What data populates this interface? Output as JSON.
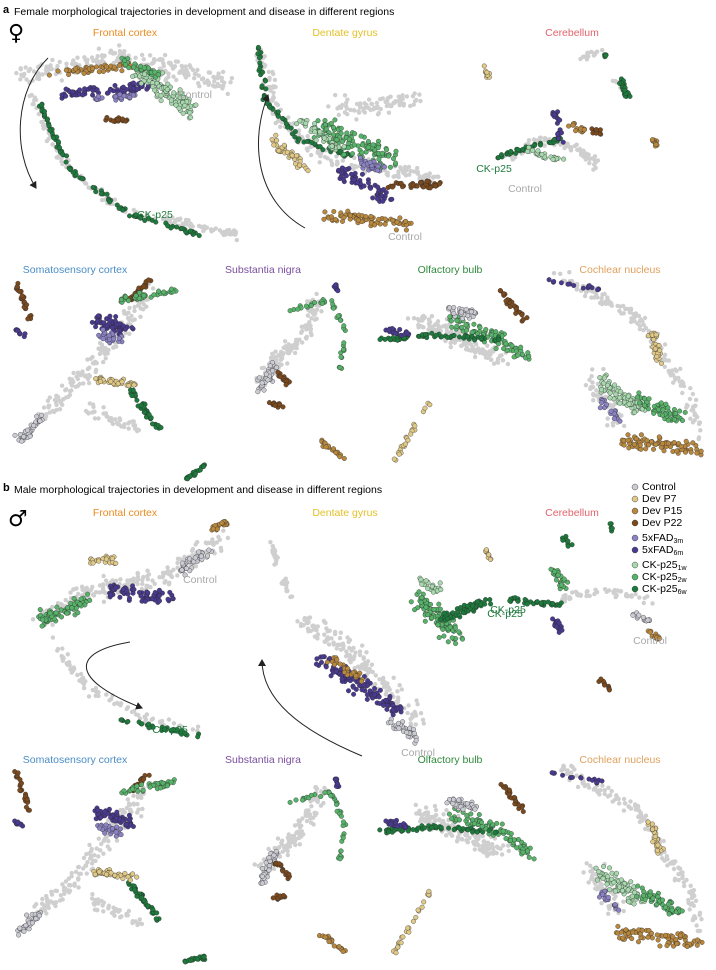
{
  "panels": [
    {
      "label": "a",
      "title": "Female morphological trajectories in development and disease in different regions",
      "sex_symbol": "♀",
      "regions": [
        {
          "name": "Frontal cortex",
          "color": "#e88b1e"
        },
        {
          "name": "Dentate gyrus",
          "color": "#e3c02a"
        },
        {
          "name": "Cerebellum",
          "color": "#e2636b"
        },
        {
          "name": "Somatosensory cortex",
          "color": "#4a8dc6"
        },
        {
          "name": "Substantia nigra",
          "color": "#7a4f9f"
        },
        {
          "name": "Olfactory bulb",
          "color": "#2f8a3c"
        },
        {
          "name": "Cochlear nucleus",
          "color": "#e0a05e"
        }
      ],
      "annotations": [
        {
          "text": "Control",
          "color": "#a9a9a9"
        },
        {
          "text": "CK-p25",
          "color": "#1e7a3c"
        },
        {
          "text": "Control",
          "color": "#a9a9a9"
        },
        {
          "text": "CK-p25",
          "color": "#1e7a3c"
        },
        {
          "text": "Control",
          "color": "#a9a9a9"
        }
      ]
    },
    {
      "label": "b",
      "title": "Male morphological trajectories in development and disease in different regions",
      "sex_symbol": "♂",
      "regions": [
        {
          "name": "Frontal cortex",
          "color": "#e88b1e"
        },
        {
          "name": "Dentate gyrus",
          "color": "#e3c02a"
        },
        {
          "name": "Cerebellum",
          "color": "#e2636b"
        },
        {
          "name": "Somatosensory cortex",
          "color": "#4a8dc6"
        },
        {
          "name": "Substantia nigra",
          "color": "#7a4f9f"
        },
        {
          "name": "Olfactory bulb",
          "color": "#2f8a3c"
        },
        {
          "name": "Cochlear nucleus",
          "color": "#e0a05e"
        }
      ],
      "annotations": [
        {
          "text": "Control",
          "color": "#a9a9a9"
        },
        {
          "text": "CK-p25",
          "color": "#1e7a3c"
        },
        {
          "text": "CK-p25",
          "color": "#1e7a3c"
        },
        {
          "text": "Control",
          "color": "#a9a9a9"
        },
        {
          "text": "CK-p25",
          "color": "#1e7a3c"
        },
        {
          "text": "Control",
          "color": "#a9a9a9"
        }
      ]
    }
  ],
  "legend": {
    "items": [
      {
        "text": "Control",
        "color": "#cbcbd4"
      },
      {
        "text": "Dev P7",
        "color": "#e0c987"
      },
      {
        "text": "Dev P15",
        "color": "#b8883e"
      },
      {
        "text": "Dev P22",
        "color": "#7a4a1e"
      },
      {
        "text": "5xFAD",
        "sub": "3m",
        "color": "#8b82c4"
      },
      {
        "text": "5xFAD",
        "sub": "6m",
        "color": "#4a3a8f"
      },
      {
        "text": "CK-p25",
        "sub": "1w",
        "color": "#a8d9ae"
      },
      {
        "text": "CK-p25",
        "sub": "2w",
        "color": "#58b36a"
      },
      {
        "text": "CK-p25",
        "sub": "6w",
        "color": "#1e7a3c"
      }
    ]
  }
}
